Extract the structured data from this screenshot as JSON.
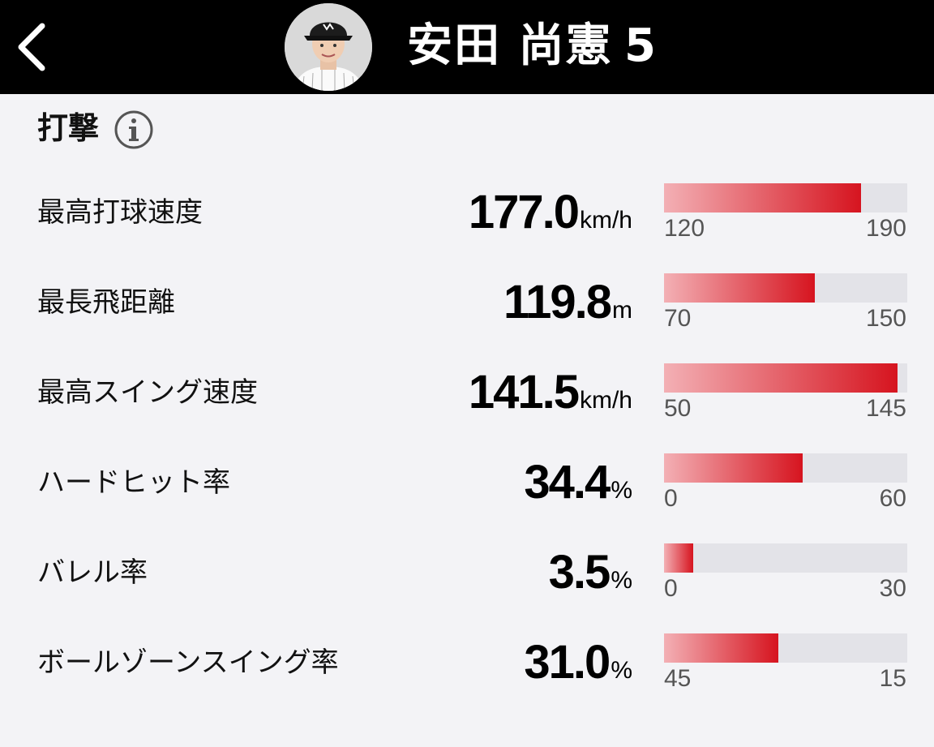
{
  "header": {
    "player_name": "安田 尚憲",
    "player_number": "5"
  },
  "section": {
    "title": "打撃"
  },
  "colors": {
    "header_bg": "#000000",
    "bar_start": "#f3b0b5",
    "bar_end": "#d6141f",
    "bar_track": "#e3e3e8"
  },
  "stats": [
    {
      "label": "最高打球速度",
      "value": "177.0",
      "unit": "km/h",
      "min": "120",
      "max": "190",
      "fill": 0.81
    },
    {
      "label": "最長飛距離",
      "value": "119.8",
      "unit": "m",
      "min": "70",
      "max": "150",
      "fill": 0.62
    },
    {
      "label": "最高スイング速度",
      "value": "141.5",
      "unit": "km/h",
      "min": "50",
      "max": "145",
      "fill": 0.96
    },
    {
      "label": "ハードヒット率",
      "value": "34.4",
      "unit": "%",
      "min": "0",
      "max": "60",
      "fill": 0.57
    },
    {
      "label": "バレル率",
      "value": "3.5",
      "unit": "%",
      "min": "0",
      "max": "30",
      "fill": 0.12
    },
    {
      "label": "ボールゾーンスイング率",
      "value": "31.0",
      "unit": "%",
      "min": "45",
      "max": "15",
      "fill": 0.47
    }
  ]
}
